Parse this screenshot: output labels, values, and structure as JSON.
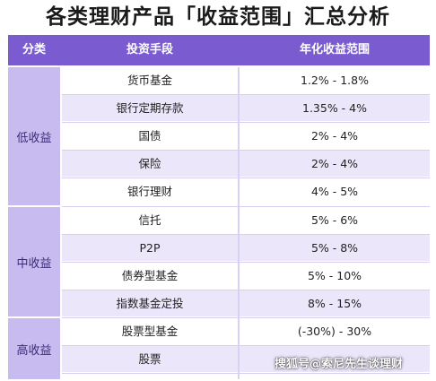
{
  "title": "各类理财产品「收益范围」汇总分析",
  "header": {
    "col_category": "分类",
    "col_method": "投资手段",
    "col_range": "年化收益范围"
  },
  "groups": [
    {
      "label": "低收益"
    },
    {
      "label": "中收益"
    },
    {
      "label": "高收益"
    }
  ],
  "rows": [
    {
      "method": "货币基金",
      "range": "1.2% - 1.8%"
    },
    {
      "method": "银行定期存款",
      "range": "1.35% - 4%"
    },
    {
      "method": "国债",
      "range": "2% - 4%"
    },
    {
      "method": "保险",
      "range": "2% - 4%"
    },
    {
      "method": "银行理财",
      "range": "4% - 5%"
    },
    {
      "method": "信托",
      "range": "5% - 6%"
    },
    {
      "method": "P2P",
      "range": "5% - 8%"
    },
    {
      "method": "债券型基金",
      "range": "5% - 10%"
    },
    {
      "method": "指数基金定投",
      "range": "8% - 15%"
    },
    {
      "method": "股票型基金",
      "range": "(-30%) - 30%"
    },
    {
      "method": "股票",
      "range": ""
    }
  ],
  "watermark": "搜狐号@索尼先生谈理财",
  "colors": {
    "header_bg": "#7a5cd0",
    "group_bg": "#c8bbef",
    "stripe_bg": "#ece6fa"
  }
}
